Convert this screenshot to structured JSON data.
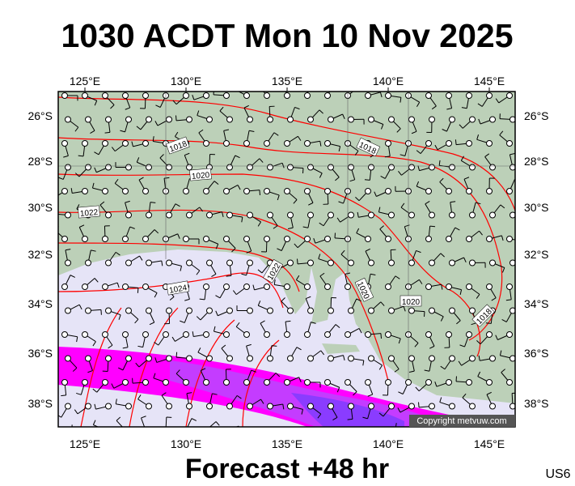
{
  "title": "1030 ACDT Mon 10 Nov 2025",
  "lon_labels": [
    "125°E",
    "130°E",
    "135°E",
    "140°E",
    "145°E"
  ],
  "lat_labels": [
    "26°S",
    "28°S",
    "30°S",
    "32°S",
    "34°S",
    "36°S",
    "38°S"
  ],
  "isobar_labels": [
    "1018",
    "1018",
    "1020",
    "1022",
    "1024",
    "1022",
    "1020",
    "1020",
    "1018"
  ],
  "copyright": "Copyright metvuw.com",
  "footer": "Forecast +48 hr",
  "code": "US6"
}
